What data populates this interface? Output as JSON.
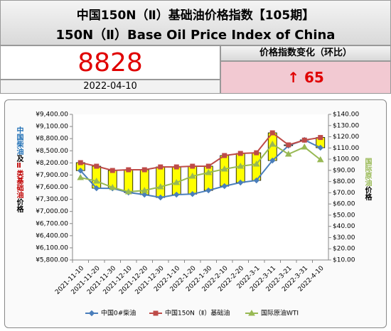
{
  "header": {
    "title": "中国150N（Ⅱ）基础油价格指数【105期】",
    "subtitle": "150N（Ⅱ）Base Oil Price Index of China"
  },
  "summary": {
    "index_value": "8828",
    "date": "2022-04-10",
    "change_title": "价格指数变化（环比）",
    "change": "↑ 65"
  },
  "chart_data": {
    "type": "line",
    "categories": [
      "2021-11-10",
      "2021-11-20",
      "2021-11-30",
      "2021-12-10",
      "2021-12-20",
      "2021-12-30",
      "2022-1-10",
      "2022-1-20",
      "2022-1-30",
      "2022-2-10",
      "2022-2-20",
      "2022-3-1",
      "2022-3-11",
      "2022-3-21",
      "2022-3-31",
      "2022-4-10"
    ],
    "series": [
      {
        "name": "中国0#柴油",
        "color": "#4a7ebb",
        "marker": "diamond",
        "values": [
          8010,
          7574,
          7570,
          7468,
          7415,
          7345,
          7415,
          7430,
          7520,
          7626,
          7714,
          7767,
          8258,
          8627,
          8768,
          8575
        ]
      },
      {
        "name": "中国150N（Ⅱ）基础油",
        "color": "#be4b48",
        "marker": "square",
        "values": [
          8206,
          8118,
          8013,
          8030,
          8030,
          8100,
          8100,
          8118,
          8118,
          8382,
          8434,
          8450,
          8943,
          8645,
          8763,
          8828
        ]
      },
      {
        "name": "国际原油WTI",
        "color": "#98b954",
        "marker": "triangle",
        "axis": "y2",
        "values": [
          83.6,
          80.4,
          74.7,
          70.9,
          72.1,
          75.3,
          79.1,
          84.8,
          88.0,
          91.2,
          93.7,
          95.6,
          113.4,
          104.5,
          110.8,
          99.5
        ]
      }
    ],
    "updown_bars": true,
    "updown_color": "#ffff00",
    "ylim": [
      5800,
      9400
    ],
    "yticks": [
      {
        "value": 5800,
        "label": "¥5,800.00"
      },
      {
        "value": 6100,
        "label": "¥6,100.00"
      },
      {
        "value": 6400,
        "label": "¥6,400.00"
      },
      {
        "value": 6700,
        "label": "¥6,700.00"
      },
      {
        "value": 7000,
        "label": "¥7,000.00"
      },
      {
        "value": 7300,
        "label": "¥7,300.00"
      },
      {
        "value": 7600,
        "label": "¥7,600.00"
      },
      {
        "value": 7900,
        "label": "¥7,900.00"
      },
      {
        "value": 8200,
        "label": "¥8,200.00"
      },
      {
        "value": 8500,
        "label": "¥8,500.00"
      },
      {
        "value": 8800,
        "label": "¥8,800.00"
      },
      {
        "value": 9100,
        "label": "¥9,100.00"
      },
      {
        "value": 9400,
        "label": "¥9,400.00"
      }
    ],
    "y2lim": [
      10,
      140
    ],
    "y2ticks": [
      {
        "value": 10,
        "label": "$10.00"
      },
      {
        "value": 20,
        "label": "$20.00"
      },
      {
        "value": 30,
        "label": "$30.00"
      },
      {
        "value": 40,
        "label": "$40.00"
      },
      {
        "value": 50,
        "label": "$50.00"
      },
      {
        "value": 60,
        "label": "$60.00"
      },
      {
        "value": 70,
        "label": "$70.00"
      },
      {
        "value": 80,
        "label": "$80.00"
      },
      {
        "value": 90,
        "label": "$90.00"
      },
      {
        "value": 100,
        "label": "$100.00"
      },
      {
        "value": 110,
        "label": "$110.00"
      },
      {
        "value": 120,
        "label": "$120.00"
      },
      {
        "value": 130,
        "label": "$130.00"
      },
      {
        "value": 140,
        "label": "$140.00"
      }
    ],
    "ylabel": [
      {
        "text": "中国柴油",
        "color": "#1f6fb5"
      },
      {
        "text": "及",
        "color": "#000000"
      },
      {
        "text": "Ⅱ类基础油",
        "color": "#c00000"
      },
      {
        "text": "价格",
        "color": "#000000"
      }
    ],
    "y2label": [
      {
        "text": "国际原油",
        "color": "#98b954"
      },
      {
        "text": "价格",
        "color": "#000000"
      }
    ]
  }
}
